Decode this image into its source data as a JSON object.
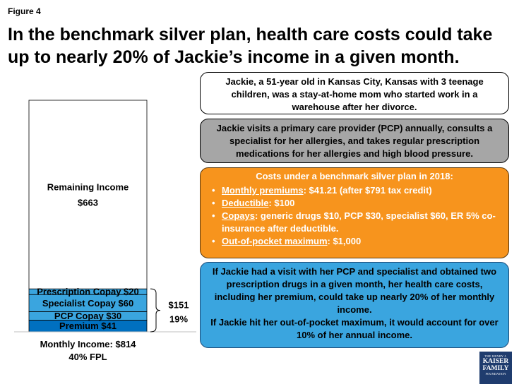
{
  "figure_label": "Figure 4",
  "title": "In the benchmark silver plan, health care costs could take\nup to nearly 20% of Jackie’s income in a given month.",
  "chart_data": {
    "type": "bar",
    "stacked": true,
    "total": 814,
    "segments": [
      {
        "name": "Premium",
        "label": "Premium $41",
        "value": 41,
        "color": "#0070c0"
      },
      {
        "name": "PCP Copay",
        "label": "PCP Copay $30",
        "value": 30,
        "color": "#3aa5df"
      },
      {
        "name": "Specialist Copay",
        "label": "Specialist Copay $60",
        "value": 60,
        "color": "#3aa5df"
      },
      {
        "name": "Prescription Copay",
        "label": "Prescription Copay $20",
        "value": 20,
        "color": "#3aa5df"
      },
      {
        "name": "Remaining Income",
        "label_line1": "Remaining Income",
        "label_line2": "$663",
        "value": 663,
        "color": "#ffffff"
      }
    ],
    "bracket_value": "$151",
    "bracket_percent": "19%",
    "xlabel_line1": "Monthly Income: $814",
    "xlabel_line2": "40% FPL"
  },
  "boxes": {
    "profile": "Jackie, a 51-year old in Kansas City, Kansas with 3 teenage children, was a stay-at-home mom who started work in a warehouse after her divorce.",
    "usage": "Jackie visits a primary care provider (PCP) annually, consults a specialist for her allergies, and takes regular prescription medications for her allergies and high blood pressure.",
    "costs": {
      "header": "Costs under a benchmark silver plan in 2018:",
      "items": [
        {
          "term": "Monthly premiums",
          "text": ": $41.21 (after $791 tax credit)"
        },
        {
          "term": "Deductible",
          "text": ": $100"
        },
        {
          "term": "Copays",
          "text": ": generic drugs $10, PCP $30, specialist $60, ER 5% co-insurance after deductible."
        },
        {
          "term": "Out-of-pocket maximum",
          "text": ": $1,000"
        }
      ]
    },
    "scenario_1": "If Jackie had a visit with her PCP and specialist and obtained two prescription drugs in a given month, her health care costs, including her premium, could take up nearly 20% of her monthly income.",
    "scenario_2": "If Jackie hit her out-of-pocket maximum, it would account for over 10% of her annual income."
  },
  "logo": {
    "line1": "THE HENRY J.",
    "line2a": "KAISER",
    "line2b": "FAMILY",
    "line3": "FOUNDATION"
  }
}
